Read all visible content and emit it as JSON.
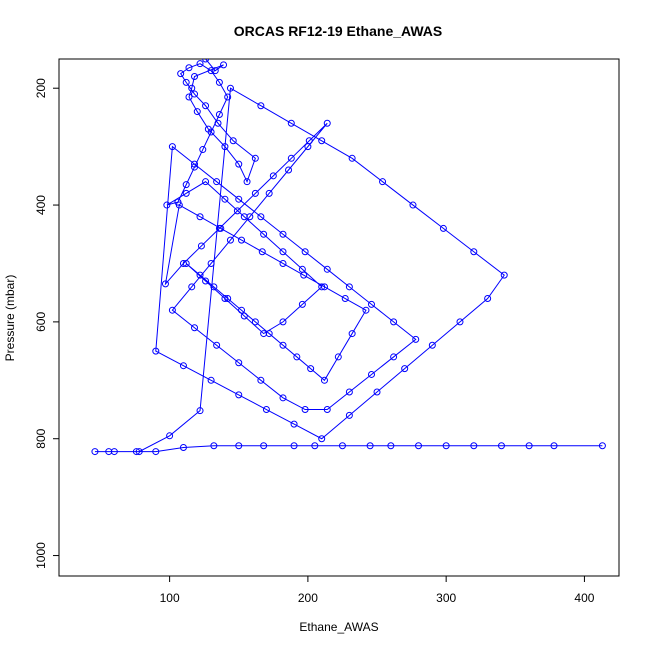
{
  "chart_data": {
    "type": "line",
    "title": "ORCAS RF12-19 Ethane_AWAS",
    "xlabel": "Ethane_AWAS",
    "ylabel": "Pressure (mbar)",
    "xlim": [
      20,
      425
    ],
    "ylim": [
      1035,
      150
    ],
    "y_reversed": true,
    "x_ticks": [
      100,
      200,
      300,
      400
    ],
    "y_ticks": [
      200,
      400,
      600,
      800,
      1000
    ],
    "series": [
      {
        "x": [
          126,
          133,
          139,
          118,
          116,
          114,
          120,
          128,
          140,
          150,
          156,
          162,
          146,
          135,
          126,
          118,
          112,
          108,
          114,
          122,
          130,
          136,
          142,
          136,
          130,
          124,
          118,
          112,
          106,
          98,
          112,
          126,
          140,
          154,
          168,
          182,
          196,
          210,
          196,
          182,
          168,
          154,
          140,
          126,
          112,
          122,
          132,
          142,
          152,
          162,
          172,
          182,
          192,
          202,
          212,
          222,
          232,
          242,
          227,
          212,
          197,
          182,
          167,
          152,
          137,
          122,
          107,
          97,
          110,
          123,
          136,
          149,
          162,
          175,
          188,
          201,
          214,
          200,
          186,
          172,
          158,
          144,
          130,
          116,
          102,
          118,
          134,
          150,
          166,
          182,
          198,
          214,
          230,
          246,
          262,
          278,
          262,
          246,
          230,
          214,
          198,
          182,
          166,
          150,
          134,
          118,
          102,
          90,
          110,
          130,
          150,
          170,
          190,
          210,
          230,
          250,
          270,
          290,
          310,
          330,
          342,
          320,
          298,
          276,
          254,
          232,
          210,
          188,
          166,
          144,
          122,
          100,
          78,
          56,
          46,
          60,
          76,
          90,
          110,
          132,
          150,
          168,
          190,
          205,
          225,
          245,
          260,
          280,
          300,
          320,
          340,
          360,
          378,
          413
        ],
        "y": [
          150,
          170,
          160,
          180,
          200,
          215,
          240,
          270,
          300,
          330,
          360,
          320,
          290,
          260,
          230,
          210,
          190,
          175,
          165,
          158,
          170,
          190,
          215,
          245,
          275,
          305,
          335,
          365,
          395,
          400,
          380,
          360,
          390,
          420,
          450,
          480,
          510,
          540,
          570,
          600,
          620,
          590,
          560,
          530,
          500,
          520,
          540,
          560,
          580,
          600,
          620,
          640,
          660,
          680,
          700,
          660,
          620,
          580,
          560,
          540,
          520,
          500,
          480,
          460,
          440,
          420,
          400,
          535,
          500,
          470,
          440,
          410,
          380,
          350,
          320,
          290,
          260,
          300,
          340,
          380,
          420,
          460,
          500,
          540,
          580,
          610,
          640,
          670,
          700,
          730,
          750,
          750,
          720,
          690,
          660,
          630,
          600,
          570,
          540,
          510,
          480,
          450,
          420,
          390,
          360,
          330,
          300,
          650,
          675,
          700,
          725,
          750,
          775,
          800,
          760,
          720,
          680,
          640,
          600,
          560,
          520,
          480,
          440,
          400,
          360,
          320,
          290,
          260,
          230,
          200,
          752,
          795,
          822,
          822,
          822,
          822,
          822,
          822,
          815,
          812,
          812,
          812,
          812,
          812,
          812,
          812,
          812,
          812,
          812,
          812,
          812,
          812,
          812,
          812
        ]
      }
    ]
  }
}
